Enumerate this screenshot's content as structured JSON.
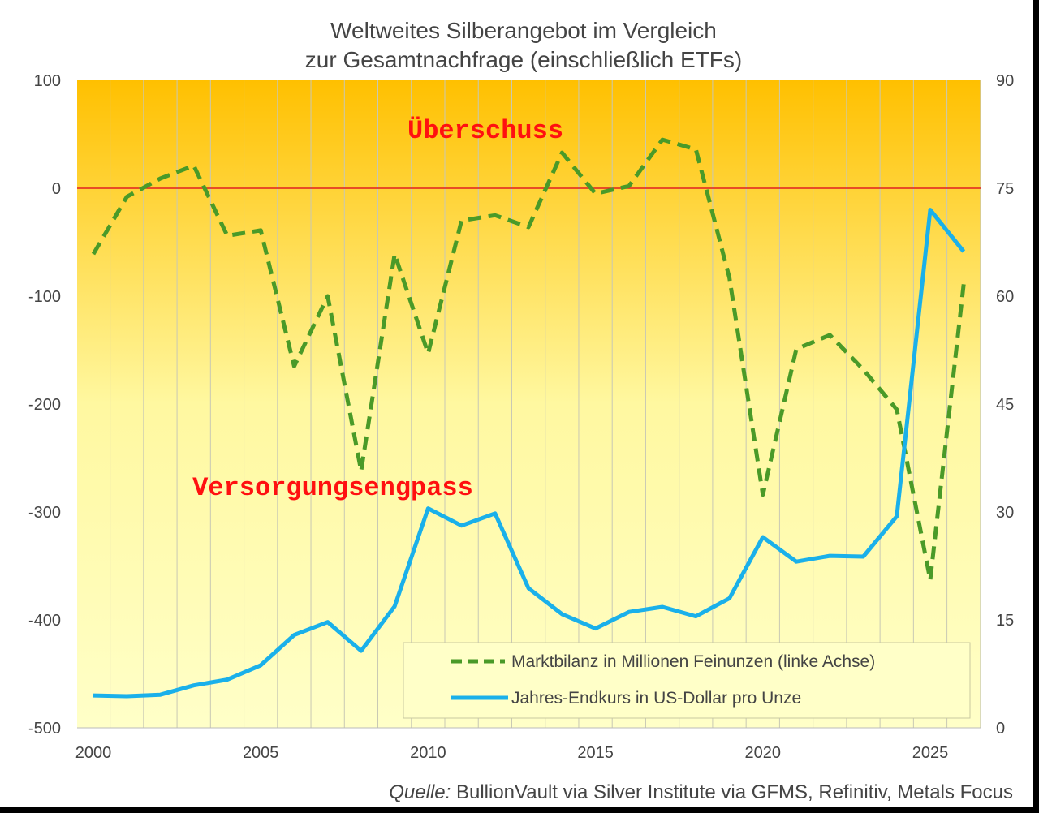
{
  "chart_data": {
    "type": "line",
    "title": [
      "Weltweites Silberangebot im Vergleich",
      "zur Gesamtnachfrage (einschließlich ETFs)"
    ],
    "x": [
      2000,
      2001,
      2002,
      2003,
      2004,
      2005,
      2006,
      2007,
      2008,
      2009,
      2010,
      2011,
      2012,
      2013,
      2014,
      2015,
      2016,
      2017,
      2018,
      2019,
      2020,
      2021,
      2022,
      2023,
      2024,
      2025,
      2026
    ],
    "x_ticks": [
      "2000",
      "2005",
      "2010",
      "2015",
      "2020",
      "2025"
    ],
    "y_left": {
      "ylim": [
        -500,
        100
      ],
      "ticks": [
        "100",
        "0",
        "-100",
        "-200",
        "-300",
        "-400",
        "-500"
      ]
    },
    "y_right": {
      "ylim": [
        0,
        90
      ],
      "ticks": [
        "90",
        "75",
        "60",
        "45",
        "30",
        "15",
        "0"
      ]
    },
    "series": [
      {
        "name": "Marktbilanz in Millionen Feinunzen (linke Achse)",
        "axis": "left",
        "style": "dashed",
        "color": "#4a9a28",
        "values": [
          -61,
          -8,
          9,
          21,
          -44,
          -39,
          -165,
          -100,
          -262,
          -61,
          -153,
          -30,
          -25,
          -36,
          33,
          -5,
          2,
          45,
          36,
          -83,
          -284,
          -149,
          -136,
          -168,
          -205,
          -363,
          -89
        ]
      },
      {
        "name": "Jahres-Endkurs in US-Dollar pro Unze",
        "axis": "right",
        "style": "solid",
        "color": "#1ab0ea",
        "values": [
          4.5,
          4.4,
          4.6,
          5.9,
          6.7,
          8.7,
          12.9,
          14.7,
          10.7,
          16.9,
          30.5,
          28.1,
          29.8,
          19.4,
          15.8,
          13.8,
          16.1,
          16.8,
          15.5,
          18.0,
          26.5,
          23.1,
          23.9,
          23.8,
          29.4,
          72.0,
          66.2
        ]
      }
    ],
    "reference_line": {
      "axis": "left",
      "value": 0,
      "color": "#e02020"
    },
    "annotations": {
      "surplus": "Überschuss",
      "deficit": "Versorgungsengpass"
    },
    "legend_position": "bottom-right",
    "grid": "vertical",
    "source_label": "Quelle:",
    "source_text": " BullionVault via Silver Institute via GFMS, Refinitiv, Metals Focus"
  }
}
